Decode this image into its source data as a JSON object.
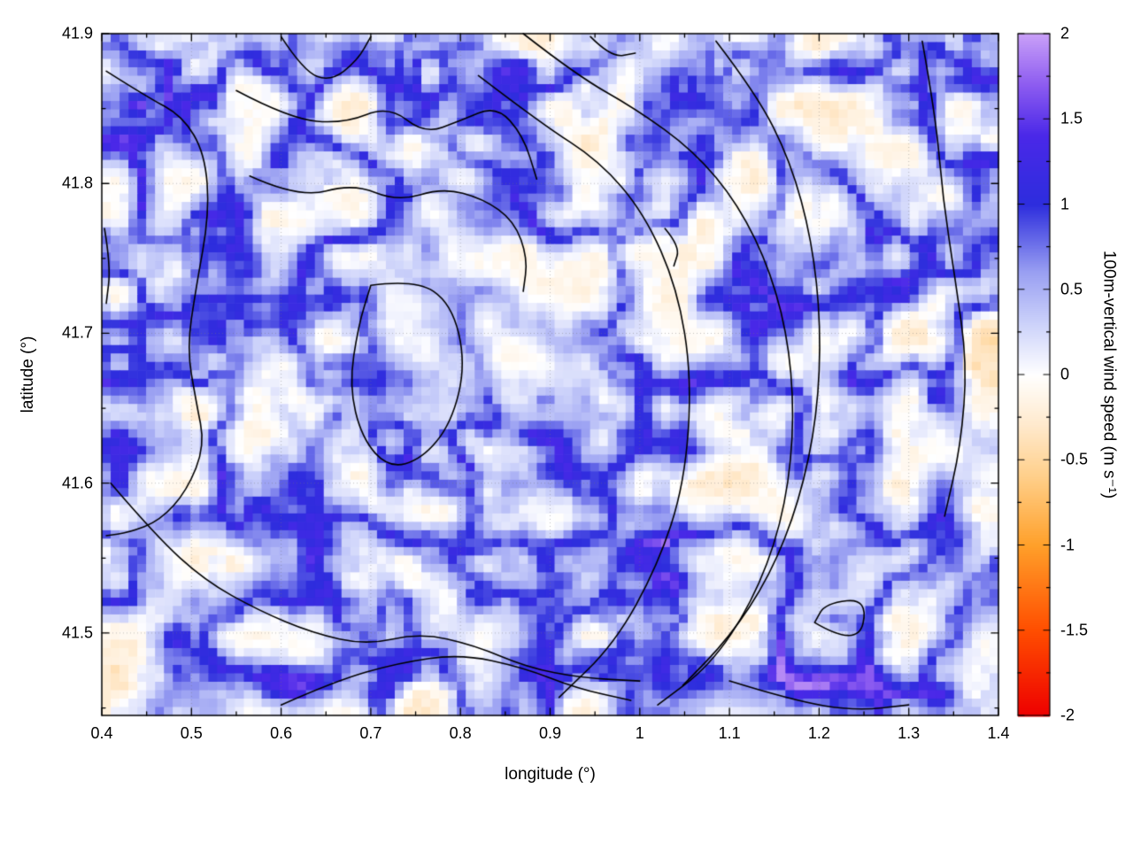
{
  "figure": {
    "background": "#ffffff",
    "plot_border_color": "#000000"
  },
  "chart_data": {
    "type": "heatmap",
    "title": "",
    "xlabel": "longitude (°)",
    "ylabel": "latitude (°)",
    "colorbar_label": "100m-vertical wind speed (m s⁻¹)",
    "xlim": [
      0.4,
      1.4
    ],
    "ylim": [
      41.445,
      41.9
    ],
    "clim": [
      -2,
      2
    ],
    "grid": {
      "visible": true,
      "style": "dotted",
      "color": "rgba(120,120,120,0.45)"
    },
    "x_ticks": {
      "major": [
        0.4,
        0.5,
        0.6,
        0.7,
        0.8,
        0.9,
        1.0,
        1.1,
        1.2,
        1.3,
        1.4
      ],
      "labels": [
        "0.4",
        "0.5",
        "0.6",
        "0.7",
        "0.8",
        "0.9",
        "1",
        "1.1",
        "1.2",
        "1.3",
        "1.4"
      ],
      "minor_step": 0.05
    },
    "y_ticks": {
      "major": [
        41.5,
        41.6,
        41.7,
        41.8,
        41.9
      ],
      "labels": [
        "41.5",
        "41.6",
        "41.7",
        "41.8",
        "41.9"
      ],
      "minor_step": 0.05
    },
    "cb_ticks": {
      "major": [
        -2,
        -1.5,
        -1,
        -0.5,
        0,
        0.5,
        1,
        1.5,
        2
      ],
      "labels": [
        "-2",
        "-1.5",
        "-1",
        "-0.5",
        "0",
        "0.5",
        "1",
        "1.5",
        "2"
      ],
      "minor_step": 0.25
    },
    "colormap_stops": [
      [
        -2.0,
        "#ee0000"
      ],
      [
        -1.5,
        "#ff4e00"
      ],
      [
        -1.0,
        "#ffa02a"
      ],
      [
        -0.6,
        "#ffcf8a"
      ],
      [
        -0.3,
        "#ffe9cc"
      ],
      [
        0.0,
        "#ffffff"
      ],
      [
        0.3,
        "#ccd2fa"
      ],
      [
        0.6,
        "#9aa0f2"
      ],
      [
        1.0,
        "#2d2ddd"
      ],
      [
        1.4,
        "#4a28e8"
      ],
      [
        1.7,
        "#8d5cf0"
      ],
      [
        2.0,
        "#c9a0f8"
      ]
    ],
    "heatmap": {
      "note": "Original figure shows a noisy filamentary field (blue updraft filaments over light-orange downdraft background, pale basin near lon 0.875 lat 41.70, blue streak near bottom-right). Field is regenerated procedurally from these parameters.",
      "nx": 101,
      "ny": 81,
      "seed": 1337,
      "background_value_range": [
        -0.6,
        -0.05
      ],
      "filament_peak_value": 1.4,
      "pale_basin_center_lonlat": [
        0.875,
        41.7
      ],
      "blue_streak_center_lonlat": [
        1.16,
        41.467
      ]
    },
    "contours": {
      "color": "#000000",
      "line_width": 1.6,
      "polylines_lonlat": [
        [
          [
            0.405,
            41.875
          ],
          [
            0.45,
            41.858
          ],
          [
            0.49,
            41.845
          ],
          [
            0.515,
            41.82
          ],
          [
            0.52,
            41.78
          ],
          [
            0.505,
            41.73
          ],
          [
            0.495,
            41.69
          ],
          [
            0.505,
            41.655
          ],
          [
            0.515,
            41.625
          ],
          [
            0.495,
            41.595
          ],
          [
            0.465,
            41.575
          ],
          [
            0.43,
            41.567
          ],
          [
            0.405,
            41.565
          ]
        ],
        [
          [
            0.55,
            41.862
          ],
          [
            0.61,
            41.843
          ],
          [
            0.67,
            41.84
          ],
          [
            0.72,
            41.852
          ],
          [
            0.76,
            41.833
          ],
          [
            0.8,
            41.842
          ],
          [
            0.84,
            41.852
          ],
          [
            0.87,
            41.832
          ],
          [
            0.885,
            41.803
          ]
        ],
        [
          [
            0.565,
            41.805
          ],
          [
            0.62,
            41.79
          ],
          [
            0.68,
            41.8
          ],
          [
            0.73,
            41.788
          ],
          [
            0.78,
            41.797
          ],
          [
            0.825,
            41.79
          ],
          [
            0.86,
            41.775
          ],
          [
            0.875,
            41.75
          ],
          [
            0.87,
            41.728
          ]
        ],
        [
          [
            0.7,
            41.732
          ],
          [
            0.75,
            41.736
          ],
          [
            0.79,
            41.72
          ],
          [
            0.806,
            41.68
          ],
          [
            0.79,
            41.64
          ],
          [
            0.757,
            41.616
          ],
          [
            0.72,
            41.61
          ],
          [
            0.69,
            41.63
          ],
          [
            0.676,
            41.665
          ],
          [
            0.686,
            41.705
          ],
          [
            0.7,
            41.732
          ]
        ],
        [
          [
            0.82,
            41.872
          ],
          [
            0.89,
            41.84
          ],
          [
            0.955,
            41.815
          ],
          [
            1.005,
            41.78
          ],
          [
            1.042,
            41.73
          ],
          [
            1.058,
            41.67
          ],
          [
            1.05,
            41.6
          ],
          [
            1.02,
            41.545
          ],
          [
            0.972,
            41.493
          ],
          [
            0.91,
            41.457
          ]
        ],
        [
          [
            0.87,
            41.9
          ],
          [
            0.93,
            41.872
          ],
          [
            0.995,
            41.85
          ],
          [
            1.06,
            41.822
          ],
          [
            1.11,
            41.786
          ],
          [
            1.147,
            41.74
          ],
          [
            1.168,
            41.688
          ],
          [
            1.172,
            41.63
          ],
          [
            1.158,
            41.572
          ],
          [
            1.125,
            41.52
          ],
          [
            1.078,
            41.478
          ],
          [
            1.02,
            41.452
          ]
        ],
        [
          [
            1.085,
            41.895
          ],
          [
            1.13,
            41.86
          ],
          [
            1.168,
            41.815
          ],
          [
            1.192,
            41.762
          ],
          [
            1.202,
            41.705
          ],
          [
            1.198,
            41.645
          ],
          [
            1.178,
            41.588
          ],
          [
            1.145,
            41.538
          ],
          [
            1.1,
            41.497
          ],
          [
            1.048,
            41.465
          ]
        ],
        [
          [
            0.41,
            41.6
          ],
          [
            0.46,
            41.565
          ],
          [
            0.515,
            41.535
          ],
          [
            0.575,
            41.515
          ],
          [
            0.635,
            41.5
          ],
          [
            0.695,
            41.492
          ],
          [
            0.755,
            41.5
          ],
          [
            0.815,
            41.492
          ],
          [
            0.875,
            41.477
          ],
          [
            0.935,
            41.47
          ],
          [
            1.0,
            41.468
          ]
        ],
        [
          [
            0.6,
            41.452
          ],
          [
            0.66,
            41.468
          ],
          [
            0.73,
            41.48
          ],
          [
            0.8,
            41.486
          ],
          [
            0.87,
            41.477
          ],
          [
            0.93,
            41.463
          ],
          [
            0.99,
            41.455
          ]
        ],
        [
          [
            0.6,
            41.898
          ],
          [
            0.625,
            41.875
          ],
          [
            0.655,
            41.868
          ],
          [
            0.685,
            41.882
          ],
          [
            0.7,
            41.898
          ]
        ],
        [
          [
            1.195,
            41.507
          ],
          [
            1.243,
            41.49
          ],
          [
            1.255,
            41.523
          ],
          [
            1.207,
            41.52
          ],
          [
            1.195,
            41.507
          ]
        ],
        [
          [
            1.1,
            41.468
          ],
          [
            1.17,
            41.455
          ],
          [
            1.24,
            41.448
          ],
          [
            1.3,
            41.452
          ]
        ],
        [
          [
            1.315,
            41.895
          ],
          [
            1.33,
            41.845
          ],
          [
            1.338,
            41.79
          ],
          [
            1.352,
            41.735
          ],
          [
            1.365,
            41.68
          ],
          [
            1.358,
            41.625
          ],
          [
            1.34,
            41.578
          ]
        ],
        [
          [
            0.945,
            41.898
          ],
          [
            0.968,
            41.884
          ],
          [
            0.995,
            41.887
          ]
        ],
        [
          [
            1.028,
            41.77
          ],
          [
            1.045,
            41.758
          ],
          [
            1.038,
            41.745
          ]
        ],
        [
          [
            0.403,
            41.77
          ],
          [
            0.41,
            41.745
          ],
          [
            0.405,
            41.72
          ]
        ]
      ]
    }
  }
}
